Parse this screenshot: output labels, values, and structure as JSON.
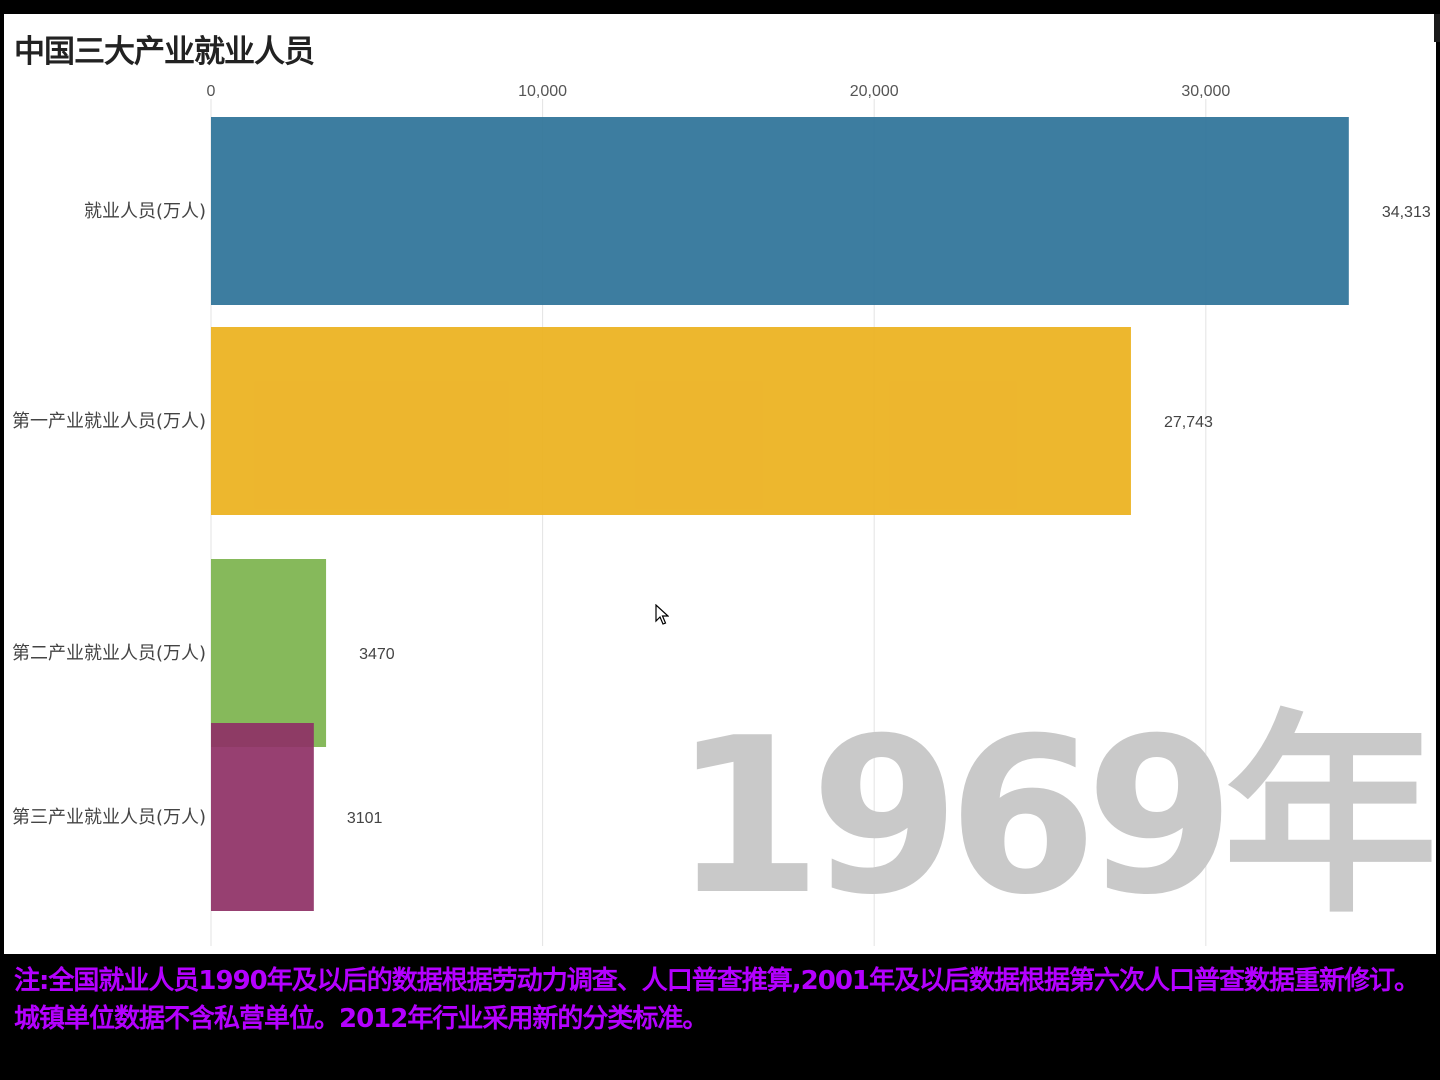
{
  "title": "中国三大产业就业人员",
  "year_label": "1969年",
  "note_line1": "注:全国就业人员1990年及以后的数据根据劳动力调查、人口普查推算,2001年及以后数据根据第六次人口普查数据重新修订。",
  "note_line2": "城镇单位数据不含私营单位。2012年行业采用新的分类标准。",
  "chart_data": {
    "type": "bar",
    "orientation": "horizontal",
    "title": "中国三大产业就业人员",
    "xlim": [
      0,
      34313
    ],
    "x_ticks": [
      0,
      10000,
      20000,
      30000
    ],
    "x_tick_labels": [
      "0",
      "10,000",
      "20,000",
      "30,000"
    ],
    "axis_position": "top",
    "grid": true,
    "categories": [
      "就业人员(万人)",
      "第一产业就业人员(万人)",
      "第二产业就业人员(万人)",
      "第三产业就业人员(万人)"
    ],
    "values": [
      34313,
      27743,
      3470,
      3101
    ],
    "value_labels": [
      "34,313",
      "27,743",
      "3470",
      "3101"
    ],
    "colors": [
      "#2e7399",
      "#ecb11e",
      "#7db44f",
      "#8f3266"
    ]
  }
}
